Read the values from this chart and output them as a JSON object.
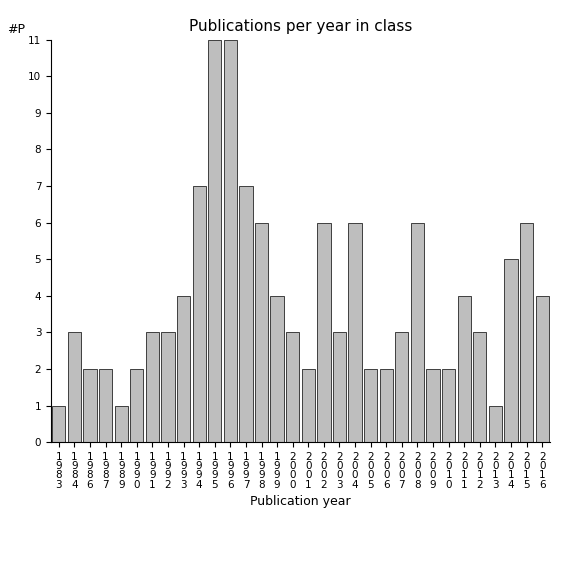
{
  "title": "Publications per year in class",
  "xlabel": "Publication year",
  "ylabel": "#P",
  "bar_color": "#bebebe",
  "bar_edge_color": "#000000",
  "bar_edge_width": 0.5,
  "ylim": [
    0,
    11
  ],
  "yticks": [
    0,
    1,
    2,
    3,
    4,
    5,
    6,
    7,
    8,
    9,
    10,
    11
  ],
  "years": [
    1983,
    1984,
    1986,
    1987,
    1989,
    1990,
    1991,
    1992,
    1993,
    1994,
    1995,
    1996,
    1997,
    1998,
    1999,
    2000,
    2001,
    2002,
    2003,
    2004,
    2005,
    2006,
    2007,
    2008,
    2009,
    2010,
    2011,
    2012,
    2013,
    2014,
    2015,
    2016
  ],
  "values": [
    1,
    3,
    2,
    2,
    1,
    2,
    3,
    3,
    4,
    7,
    11,
    11,
    7,
    6,
    4,
    3,
    2,
    6,
    3,
    6,
    2,
    2,
    3,
    6,
    2,
    2,
    4,
    3,
    1,
    5,
    6,
    4
  ],
  "background_color": "#ffffff",
  "title_fontsize": 11,
  "label_fontsize": 9,
  "tick_fontsize": 7.5
}
